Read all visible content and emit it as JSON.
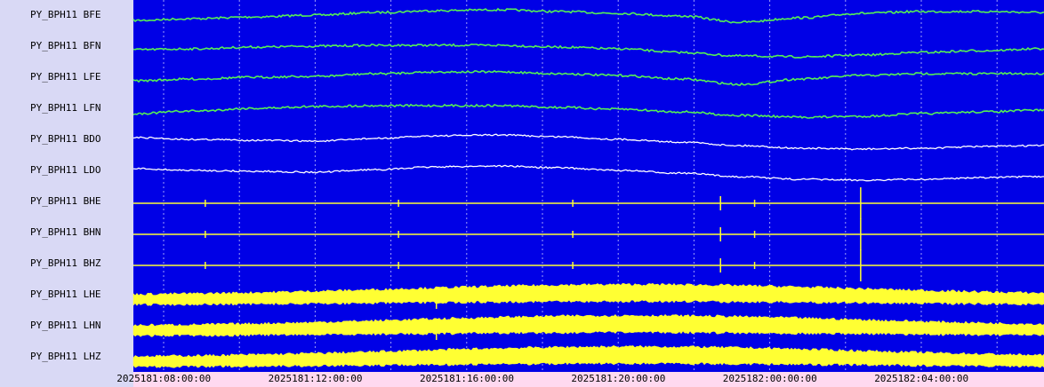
{
  "colors": {
    "background": "#0000e6",
    "label_panel": "#d9d9f5",
    "time_panel": "#ffd9f0",
    "grid": "#c8c8ff",
    "green_trace": "#55ee55",
    "white_trace": "#ffffff",
    "yellow_trace": "#ffff33"
  },
  "chart_data": {
    "type": "line",
    "title": "",
    "xlabel": "",
    "ylabel": "",
    "grid": true,
    "x_tick_labels": [
      "2025181:08:00:00",
      "2025181:12:00:00",
      "2025181:16:00:00",
      "2025181:20:00:00",
      "2025182:00:00:00",
      "2025182:04:00:00"
    ],
    "series": [
      {
        "name": "PY_BPH11 BFE",
        "color": "green",
        "style": "drift",
        "offsets": [
          12,
          10,
          8,
          6,
          3,
          1,
          0,
          2,
          4,
          7,
          14,
          9,
          4,
          2,
          2,
          3
        ]
      },
      {
        "name": "PY_BPH11 BFN",
        "color": "green",
        "style": "drift",
        "offsets": [
          10,
          9,
          7,
          6,
          5,
          5,
          5,
          7,
          9,
          13,
          17,
          18,
          16,
          13,
          11,
          9
        ]
      },
      {
        "name": "PY_BPH11 LFE",
        "color": "green",
        "style": "drift",
        "offsets": [
          10,
          8,
          6,
          5,
          2,
          0,
          0,
          2,
          4,
          8,
          14,
          8,
          4,
          2,
          2,
          2
        ]
      },
      {
        "name": "PY_BPH11 LFN",
        "color": "green",
        "style": "drift",
        "offsets": [
          12,
          9,
          6,
          4,
          3,
          3,
          3,
          5,
          7,
          10,
          14,
          16,
          15,
          12,
          10,
          8
        ]
      },
      {
        "name": "PY_BPH11 BDO",
        "color": "white",
        "style": "drift",
        "offsets": [
          4,
          6,
          7,
          8,
          5,
          2,
          1,
          3,
          6,
          9,
          13,
          16,
          17,
          16,
          14,
          13
        ]
      },
      {
        "name": "PY_BPH11 LDO",
        "color": "white",
        "style": "drift",
        "offsets": [
          4,
          6,
          7,
          8,
          5,
          2,
          1,
          3,
          6,
          9,
          13,
          16,
          17,
          16,
          14,
          13
        ]
      },
      {
        "name": "PY_BPH11 BHE",
        "color": "yellow",
        "style": "flat",
        "spike_at_hours": [
          9.1,
          14.2,
          18.8,
          22.7,
          23.6,
          26.4
        ]
      },
      {
        "name": "PY_BPH11 BHN",
        "color": "yellow",
        "style": "flat",
        "spike_at_hours": [
          9.1,
          14.2,
          18.8,
          22.7,
          23.6,
          26.4
        ]
      },
      {
        "name": "PY_BPH11 BHZ",
        "color": "yellow",
        "style": "flat",
        "spike_at_hours": [
          9.1,
          14.2,
          18.8,
          22.7,
          23.6,
          26.4
        ]
      },
      {
        "name": "PY_BPH11 LHE",
        "color": "yellow",
        "style": "noise",
        "spike_at_hours": [
          15.2
        ]
      },
      {
        "name": "PY_BPH11 LHN",
        "color": "yellow",
        "style": "noise",
        "spike_at_hours": [
          15.2
        ]
      },
      {
        "name": "PY_BPH11 LHZ",
        "color": "yellow",
        "style": "noise",
        "spike_at_hours": []
      }
    ]
  }
}
